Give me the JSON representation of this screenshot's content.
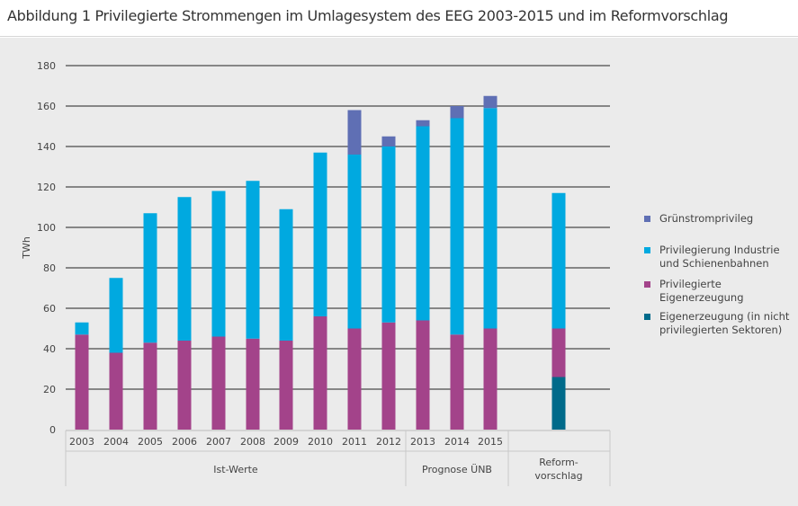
{
  "title": "Abbildung 1 Privilegierte Strommengen im Umlagesystem des EEG 2003-2015 und im Reformvorschlag",
  "colors": {
    "gruenstrom": "#5f6fb4",
    "industrie": "#00a9e0",
    "eigen_priv": "#a3438a",
    "eigen_nicht": "#006a8a",
    "grid": "#222222",
    "background": "#ebebeb"
  },
  "legend": [
    {
      "key": "gruenstrom",
      "lines": [
        "Grünstromprivileg"
      ]
    },
    {
      "key": "industrie",
      "lines": [
        "Privilegierung Industrie",
        "und Schienenbahnen"
      ]
    },
    {
      "key": "eigen_priv",
      "lines": [
        "Privilegierte",
        "Eigenerzeugung"
      ]
    },
    {
      "key": "eigen_nicht",
      "lines": [
        "Eigenerzeugung (in nicht",
        "privilegierten Sektoren)"
      ]
    }
  ],
  "chart_data": {
    "type": "bar",
    "stacked": true,
    "ylabel": "TWh",
    "ylim": [
      0,
      180
    ],
    "yticks": [
      0,
      20,
      40,
      60,
      80,
      100,
      120,
      140,
      160,
      180
    ],
    "grid": true,
    "legend_position": "right",
    "categories": [
      "2003",
      "2004",
      "2005",
      "2006",
      "2007",
      "2008",
      "2009",
      "2010",
      "2011",
      "2012",
      "2013",
      "2014",
      "2015",
      "Reform-vorschlag"
    ],
    "category_labels": [
      "2003",
      "2004",
      "2005",
      "2006",
      "2007",
      "2008",
      "2009",
      "2010",
      "2011",
      "2012",
      "2013",
      "2014",
      "2015",
      ""
    ],
    "groups": [
      {
        "label": "Ist-Werte",
        "from": 0,
        "to": 9
      },
      {
        "label": "Prognose ÜNB",
        "from": 10,
        "to": 12
      },
      {
        "label": "Reform-\nvorschlag",
        "from": 13,
        "to": 13
      }
    ],
    "series": [
      {
        "name": "Eigenerzeugung (in nicht privilegierten Sektoren)",
        "key": "eigen_nicht",
        "values": [
          0,
          0,
          0,
          0,
          0,
          0,
          0,
          0,
          0,
          0,
          0,
          0,
          0,
          26
        ]
      },
      {
        "name": "Privilegierte Eigenerzeugung",
        "key": "eigen_priv",
        "values": [
          47,
          38,
          43,
          44,
          46,
          45,
          44,
          56,
          50,
          53,
          54,
          47,
          50,
          24
        ]
      },
      {
        "name": "Privilegierung Industrie und Schienenbahnen",
        "key": "industrie",
        "values": [
          6,
          37,
          64,
          71,
          72,
          78,
          65,
          81,
          86,
          87,
          96,
          107,
          109,
          67
        ]
      },
      {
        "name": "Grünstromprivileg",
        "key": "gruenstrom",
        "values": [
          0,
          0,
          0,
          0,
          0,
          0,
          0,
          0,
          22,
          5,
          3,
          6,
          6,
          0
        ]
      }
    ]
  }
}
